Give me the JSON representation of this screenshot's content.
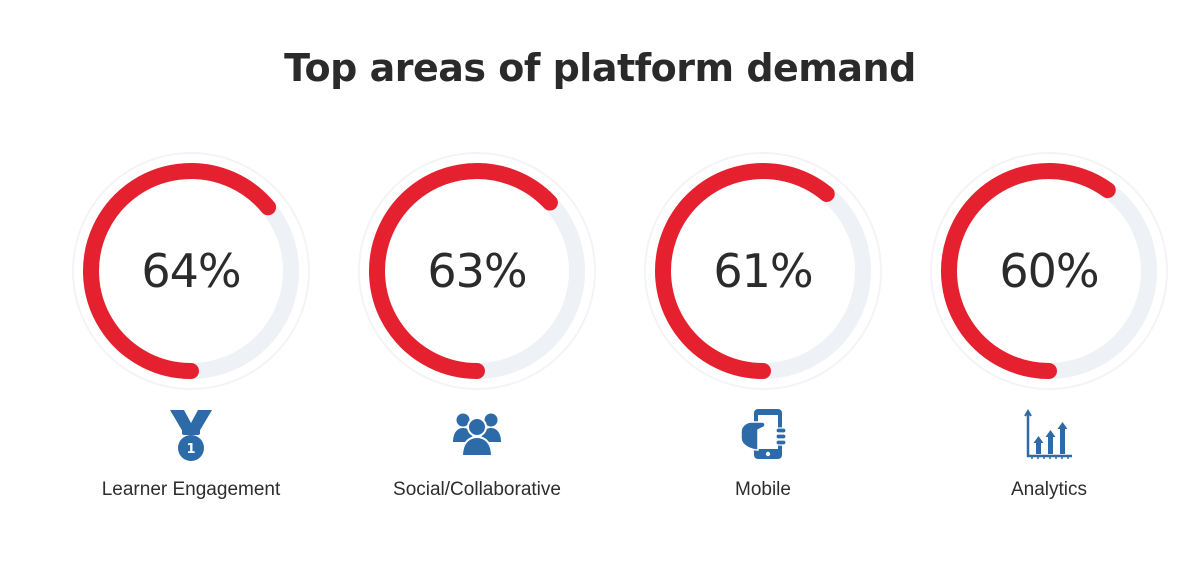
{
  "title": "Top areas of platform demand",
  "colors": {
    "arc": "#e5202f",
    "track": "#eef1f5",
    "icon": "#2d6aa8"
  },
  "chart_data": {
    "type": "radial-progress",
    "title": "Top areas of platform demand",
    "categories": [
      "Learner Engagement",
      "Social/Collaborative",
      "Mobile",
      "Analytics"
    ],
    "values": [
      64,
      63,
      61,
      60
    ],
    "max": 100,
    "unit": "%",
    "items": [
      {
        "label": "Learner Engagement",
        "value": 64,
        "value_label": "64%",
        "icon": "medal-icon"
      },
      {
        "label": "Social/Collaborative",
        "value": 63,
        "value_label": "63%",
        "icon": "group-icon"
      },
      {
        "label": "Mobile",
        "value": 61,
        "value_label": "61%",
        "icon": "mobile-phone-icon"
      },
      {
        "label": "Analytics",
        "value": 60,
        "value_label": "60%",
        "icon": "bar-chart-icon"
      }
    ]
  }
}
